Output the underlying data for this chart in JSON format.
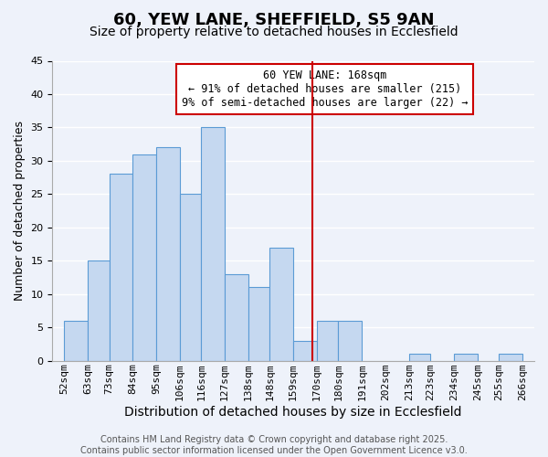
{
  "title": "60, YEW LANE, SHEFFIELD, S5 9AN",
  "subtitle": "Size of property relative to detached houses in Ecclesfield",
  "xlabel": "Distribution of detached houses by size in Ecclesfield",
  "ylabel": "Number of detached properties",
  "bin_edges": [
    52,
    63,
    73,
    84,
    95,
    106,
    116,
    127,
    138,
    148,
    159,
    170,
    180,
    191,
    202,
    213,
    223,
    234,
    245,
    255,
    266
  ],
  "bin_labels": [
    "52sqm",
    "63sqm",
    "73sqm",
    "84sqm",
    "95sqm",
    "106sqm",
    "116sqm",
    "127sqm",
    "138sqm",
    "148sqm",
    "159sqm",
    "170sqm",
    "180sqm",
    "191sqm",
    "202sqm",
    "213sqm",
    "223sqm",
    "234sqm",
    "245sqm",
    "255sqm",
    "266sqm"
  ],
  "counts": [
    6,
    15,
    28,
    31,
    32,
    25,
    35,
    13,
    11,
    17,
    3,
    6,
    6,
    0,
    0,
    1,
    0,
    1,
    0,
    1
  ],
  "bar_color": "#c5d8f0",
  "bar_edge_color": "#5b9bd5",
  "vline_x": 168,
  "vline_color": "#cc0000",
  "ylim": [
    0,
    45
  ],
  "yticks": [
    0,
    5,
    10,
    15,
    20,
    25,
    30,
    35,
    40,
    45
  ],
  "annotation_title": "60 YEW LANE: 168sqm",
  "annotation_line1": "← 91% of detached houses are smaller (215)",
  "annotation_line2": "9% of semi-detached houses are larger (22) →",
  "annotation_box_color": "#ffffff",
  "annotation_box_edge": "#cc0000",
  "footer1": "Contains HM Land Registry data © Crown copyright and database right 2025.",
  "footer2": "Contains public sector information licensed under the Open Government Licence v3.0.",
  "bg_color": "#eef2fa",
  "grid_color": "#ffffff",
  "title_fontsize": 13,
  "subtitle_fontsize": 10,
  "axis_label_fontsize": 10,
  "tick_fontsize": 8,
  "annotation_fontsize": 8.5,
  "footer_fontsize": 7
}
